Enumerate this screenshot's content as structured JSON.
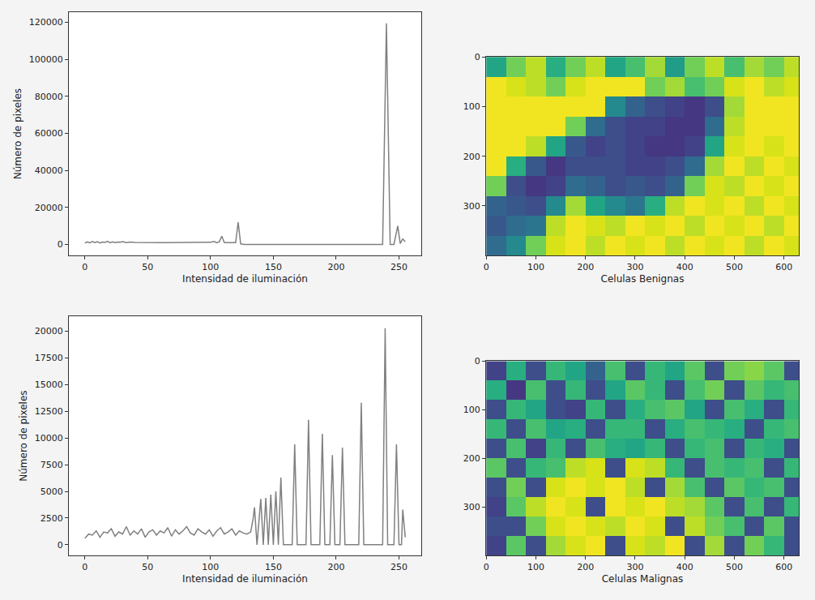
{
  "chart_data": [
    {
      "type": "line",
      "color": "#808080",
      "xlabel": "Intensidad de iluminación",
      "ylabel": "Número de pixeles",
      "x": [
        0,
        2,
        4,
        6,
        8,
        10,
        12,
        14,
        16,
        18,
        20,
        22,
        24,
        26,
        28,
        30,
        33,
        36,
        40,
        45,
        50,
        55,
        60,
        65,
        70,
        75,
        80,
        85,
        90,
        95,
        100,
        103,
        105,
        107,
        109,
        111,
        114,
        117,
        120,
        122,
        124,
        127,
        140,
        160,
        180,
        200,
        220,
        237,
        240,
        243,
        246,
        249,
        251,
        253,
        255
      ],
      "values": [
        800,
        1400,
        900,
        1600,
        1000,
        1500,
        800,
        1300,
        1100,
        1700,
        900,
        1400,
        1000,
        1300,
        1200,
        1500,
        1000,
        1300,
        1100,
        1000,
        1000,
        1000,
        1000,
        1000,
        1000,
        1000,
        1000,
        1000,
        1000,
        1000,
        1200,
        1600,
        900,
        1500,
        4500,
        1000,
        1000,
        1000,
        1000,
        12000,
        300,
        0,
        0,
        0,
        0,
        0,
        0,
        0,
        119500,
        0,
        0,
        10000,
        500,
        3000,
        1500
      ],
      "xlim": [
        -12.75,
        267.75
      ],
      "xticks": [
        0,
        50,
        100,
        150,
        200,
        250
      ],
      "ylim": [
        -5975,
        125475
      ],
      "yticks": [
        0,
        20000,
        40000,
        60000,
        80000,
        100000,
        120000
      ]
    },
    {
      "type": "heatmap",
      "color": "viridis",
      "xlabel": "Celulas Benignas",
      "cell_x": [
        20,
        60,
        100,
        140,
        180,
        220,
        260,
        300,
        340,
        380,
        420,
        460,
        500,
        540,
        580,
        620
      ],
      "cell_y": [
        20,
        60,
        100,
        140,
        180,
        220,
        260,
        300,
        340,
        380
      ],
      "cells": [
        [
          150,
          200,
          230,
          160,
          200,
          230,
          150,
          180,
          220,
          140,
          200,
          230,
          180,
          220,
          200,
          230
        ],
        [
          250,
          240,
          230,
          200,
          240,
          250,
          250,
          250,
          200,
          220,
          180,
          200,
          240,
          250,
          230,
          240
        ],
        [
          250,
          250,
          250,
          250,
          250,
          250,
          120,
          80,
          60,
          50,
          40,
          60,
          220,
          250,
          250,
          250
        ],
        [
          250,
          250,
          250,
          250,
          200,
          90,
          60,
          50,
          50,
          40,
          40,
          90,
          230,
          250,
          250,
          250
        ],
        [
          250,
          250,
          230,
          150,
          70,
          50,
          60,
          50,
          40,
          40,
          50,
          150,
          240,
          250,
          240,
          250
        ],
        [
          250,
          160,
          70,
          40,
          60,
          60,
          60,
          50,
          50,
          60,
          90,
          220,
          250,
          230,
          250,
          240
        ],
        [
          200,
          60,
          40,
          50,
          90,
          80,
          60,
          70,
          60,
          80,
          200,
          240,
          230,
          250,
          240,
          250
        ],
        [
          80,
          70,
          60,
          120,
          220,
          150,
          120,
          100,
          160,
          230,
          250,
          240,
          250,
          230,
          250,
          240
        ],
        [
          70,
          90,
          100,
          230,
          250,
          240,
          230,
          250,
          240,
          250,
          230,
          250,
          240,
          250,
          230,
          250
        ],
        [
          90,
          120,
          200,
          240,
          250,
          230,
          250,
          240,
          250,
          230,
          250,
          240,
          250,
          230,
          250,
          240
        ]
      ],
      "zlim": [
        0,
        255
      ],
      "xlim": [
        -0.5,
        630
      ],
      "xticks": [
        0,
        100,
        200,
        300,
        400,
        500,
        600
      ],
      "ylim": [
        400,
        -0.5
      ],
      "yticks": [
        0,
        100,
        200,
        300
      ]
    },
    {
      "type": "line",
      "color": "#808080",
      "xlabel": "Intensidad de iluminación",
      "ylabel": "Número de pixeles",
      "x": [
        0,
        3,
        6,
        9,
        12,
        15,
        18,
        21,
        24,
        27,
        30,
        33,
        36,
        39,
        42,
        45,
        48,
        51,
        54,
        57,
        60,
        63,
        66,
        69,
        72,
        75,
        78,
        81,
        84,
        87,
        90,
        93,
        96,
        99,
        102,
        105,
        108,
        111,
        114,
        117,
        120,
        123,
        126,
        129,
        132,
        134,
        135,
        137,
        140,
        142,
        144,
        146,
        148,
        150,
        152,
        154,
        156,
        158,
        165,
        167,
        169,
        176,
        178,
        180,
        187,
        189,
        191,
        195,
        197,
        199,
        203,
        205,
        207,
        218,
        220,
        222,
        237,
        239,
        241,
        246,
        248,
        250,
        252,
        253,
        255
      ],
      "values": [
        600,
        1000,
        900,
        1300,
        700,
        1200,
        1100,
        1500,
        800,
        1200,
        1000,
        1700,
        900,
        1300,
        1000,
        1500,
        700,
        1200,
        1400,
        900,
        1300,
        1100,
        1600,
        800,
        1400,
        1000,
        1300,
        1700,
        1100,
        900,
        1500,
        1200,
        1000,
        1400,
        800,
        1300,
        1600,
        1000,
        1200,
        1500,
        900,
        1300,
        1100,
        1000,
        1200,
        2500,
        3500,
        0,
        4300,
        0,
        4400,
        0,
        4700,
        0,
        5000,
        0,
        6300,
        0,
        0,
        9400,
        0,
        0,
        11700,
        0,
        0,
        10400,
        0,
        0,
        8400,
        0,
        0,
        9100,
        0,
        0,
        13300,
        0,
        0,
        20300,
        0,
        0,
        9400,
        0,
        0,
        3300,
        700
      ],
      "xlim": [
        -12.75,
        267.75
      ],
      "xticks": [
        0,
        50,
        100,
        150,
        200,
        250
      ],
      "ylim": [
        -1000,
        21400
      ],
      "yticks": [
        0,
        2500,
        5000,
        7500,
        10000,
        12500,
        15000,
        17500,
        20000
      ]
    },
    {
      "type": "heatmap",
      "color": "viridis",
      "xlabel": "Celulas Malignas",
      "cell_x": [
        20,
        60,
        100,
        140,
        180,
        220,
        260,
        300,
        340,
        380,
        420,
        460,
        500,
        540,
        580,
        620
      ],
      "cell_y": [
        20,
        60,
        100,
        140,
        180,
        220,
        260,
        300,
        340,
        380
      ],
      "cells": [
        [
          50,
          160,
          60,
          170,
          150,
          80,
          180,
          60,
          170,
          150,
          190,
          60,
          200,
          210,
          190,
          60
        ],
        [
          160,
          40,
          180,
          60,
          170,
          60,
          150,
          190,
          170,
          60,
          180,
          200,
          60,
          190,
          170,
          180
        ],
        [
          60,
          170,
          150,
          60,
          50,
          170,
          60,
          160,
          180,
          190,
          150,
          60,
          180,
          160,
          60,
          170
        ],
        [
          170,
          60,
          180,
          150,
          160,
          60,
          170,
          170,
          60,
          160,
          180,
          170,
          160,
          60,
          170,
          180
        ],
        [
          60,
          180,
          50,
          170,
          60,
          180,
          160,
          150,
          170,
          60,
          170,
          180,
          60,
          170,
          160,
          60
        ],
        [
          190,
          60,
          170,
          180,
          230,
          240,
          60,
          240,
          230,
          170,
          60,
          180,
          170,
          180,
          60,
          170
        ],
        [
          60,
          200,
          60,
          240,
          250,
          240,
          250,
          230,
          60,
          220,
          180,
          60,
          190,
          170,
          180,
          60
        ],
        [
          50,
          190,
          230,
          250,
          240,
          60,
          250,
          240,
          250,
          230,
          220,
          190,
          60,
          180,
          60,
          170
        ],
        [
          60,
          60,
          200,
          240,
          250,
          240,
          230,
          250,
          240,
          60,
          230,
          200,
          180,
          60,
          190,
          60
        ],
        [
          50,
          190,
          60,
          220,
          240,
          250,
          60,
          240,
          230,
          250,
          60,
          220,
          60,
          200,
          170,
          60
        ]
      ],
      "zlim": [
        0,
        255
      ],
      "xlim": [
        -0.5,
        630
      ],
      "xticks": [
        0,
        100,
        200,
        300,
        400,
        500,
        600
      ],
      "ylim": [
        400,
        -0.5
      ],
      "yticks": [
        0,
        100,
        200,
        300
      ]
    }
  ]
}
